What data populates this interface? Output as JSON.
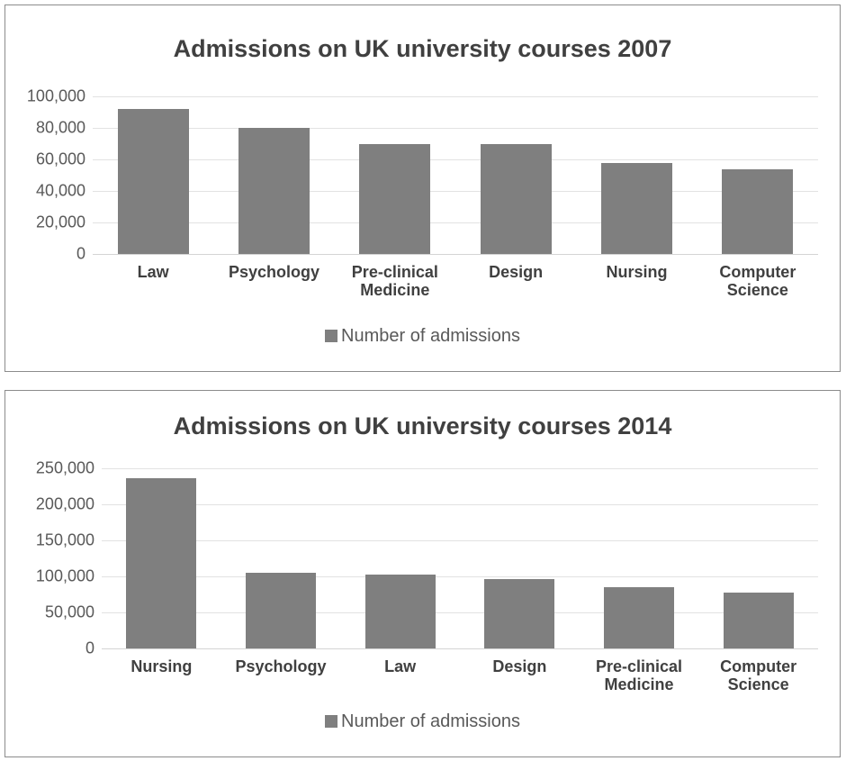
{
  "chart_data": [
    {
      "type": "bar",
      "title": "Admissions on UK university courses 2007",
      "xlabel": "",
      "ylabel": "",
      "categories": [
        "Law",
        "Psychology",
        "Pre-clinical\nMedicine",
        "Design",
        "Nursing",
        "Computer\nScience"
      ],
      "series": [
        {
          "name": "Number of admissions",
          "values": [
            92000,
            80000,
            70000,
            70000,
            58000,
            54000
          ]
        }
      ],
      "ylim": [
        0,
        100000
      ],
      "yticks": [
        "0",
        "20,000",
        "40,000",
        "60,000",
        "80,000",
        "100,000"
      ],
      "grid": true,
      "legend_position": "bottom",
      "bar_color": "#7f7f7f"
    },
    {
      "type": "bar",
      "title": "Admissions on UK university courses 2014",
      "xlabel": "",
      "ylabel": "",
      "categories": [
        "Nursing",
        "Psychology",
        "Law",
        "Design",
        "Pre-clinical\nMedicine",
        "Computer\nScience"
      ],
      "series": [
        {
          "name": "Number of admissions",
          "values": [
            236000,
            105000,
            102000,
            96000,
            85000,
            77000
          ]
        }
      ],
      "ylim": [
        0,
        250000
      ],
      "yticks": [
        "0",
        "50,000",
        "100,000",
        "150,000",
        "200,000",
        "250,000"
      ],
      "grid": true,
      "legend_position": "bottom",
      "bar_color": "#7f7f7f"
    }
  ]
}
